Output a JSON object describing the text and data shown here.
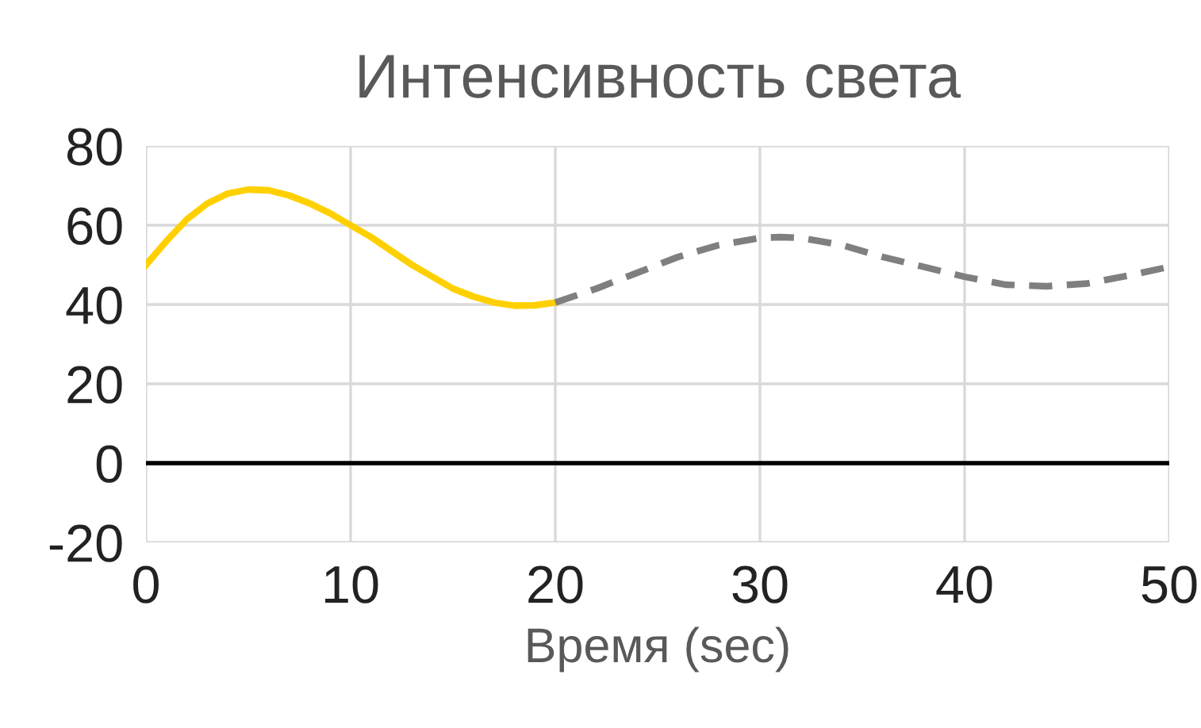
{
  "chart_data": {
    "type": "line",
    "title": "Интенсивность света",
    "xlabel": "Время (sec)",
    "series": [
      {
        "color": "#ffd000",
        "line_style": "solid",
        "x": [
          0,
          1,
          2,
          3,
          4,
          5,
          6,
          7,
          8,
          9,
          10,
          11,
          12,
          13,
          14,
          15,
          16,
          17,
          18,
          19,
          20
        ],
        "values": [
          50,
          56,
          61.5,
          65.5,
          68,
          69,
          68.8,
          67.5,
          65.5,
          63,
          60,
          57,
          53.5,
          50,
          47,
          44,
          42,
          40.5,
          39.7,
          39.8,
          40.5
        ]
      },
      {
        "color": "#7f7f7f",
        "line_style": "dashed",
        "x": [
          20,
          22,
          24,
          26,
          28,
          30,
          31,
          32,
          34,
          36,
          38,
          40,
          42,
          44,
          46,
          48,
          50
        ],
        "values": [
          40.5,
          44,
          48,
          52,
          55,
          56.8,
          57,
          56.8,
          55,
          52,
          49.5,
          47,
          45,
          44.6,
          45.3,
          47.3,
          49.5
        ]
      }
    ],
    "xlim": [
      0,
      50
    ],
    "xticks": [
      0,
      10,
      20,
      30,
      40,
      50
    ],
    "ylim": [
      -20,
      80
    ],
    "yticks": [
      -20,
      0,
      20,
      40,
      60,
      80
    ],
    "grid": true,
    "legend": false,
    "marker": "none",
    "ref_lines": [
      {
        "axis": "y",
        "value": 0,
        "color": "#000000"
      }
    ]
  }
}
